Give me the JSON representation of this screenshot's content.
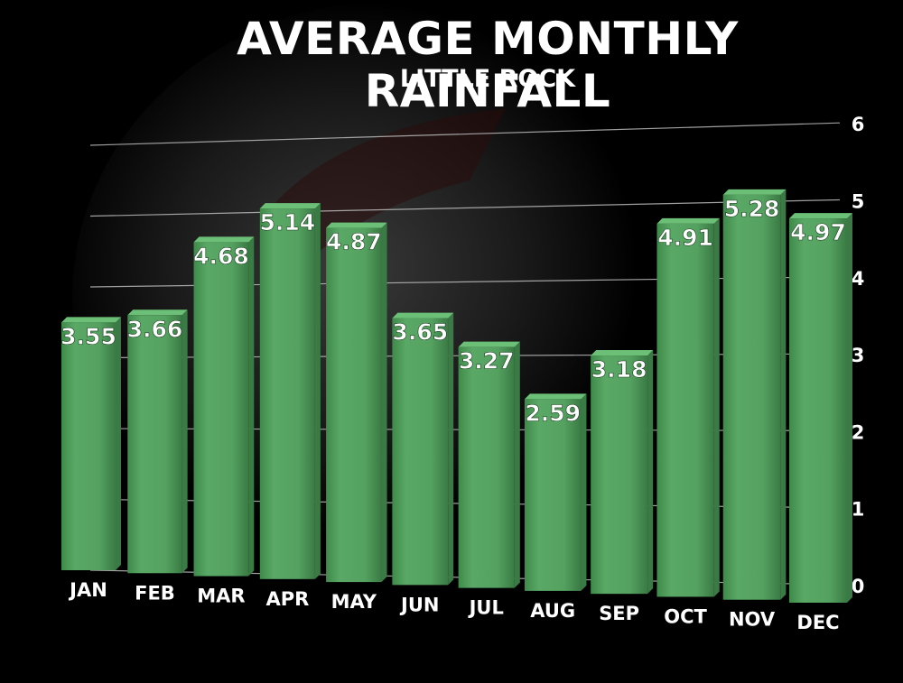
{
  "chart_data": {
    "type": "bar",
    "title": "AVERAGE MONTHLY RAINFALL",
    "subtitle": "LITTLE ROCK",
    "xlabel": "",
    "ylabel": "",
    "categories": [
      "JAN",
      "FEB",
      "MAR",
      "APR",
      "MAY",
      "JUN",
      "JUL",
      "AUG",
      "SEP",
      "OCT",
      "NOV",
      "DEC"
    ],
    "values": [
      3.55,
      3.66,
      4.68,
      5.14,
      4.87,
      3.65,
      3.27,
      2.59,
      3.18,
      4.91,
      5.28,
      4.97
    ],
    "value_labels": [
      "3.55",
      "3.66",
      "4.68",
      "5.14",
      "4.87",
      "3.65",
      "3.27",
      "2.59",
      "3.18",
      "4.91",
      "5.28",
      "4.97"
    ],
    "ylim": [
      0,
      6
    ],
    "yticks": [
      "0",
      "1",
      "2",
      "3",
      "4",
      "5",
      "6"
    ],
    "grid": true,
    "legend": "none",
    "colors": {
      "background": "#000000",
      "bar": "#4f9c5a",
      "bar_dark": "#3a7a44",
      "bar_light": "#6cbf77",
      "text": "#ffffff",
      "grid": "#bbbbbb"
    }
  }
}
